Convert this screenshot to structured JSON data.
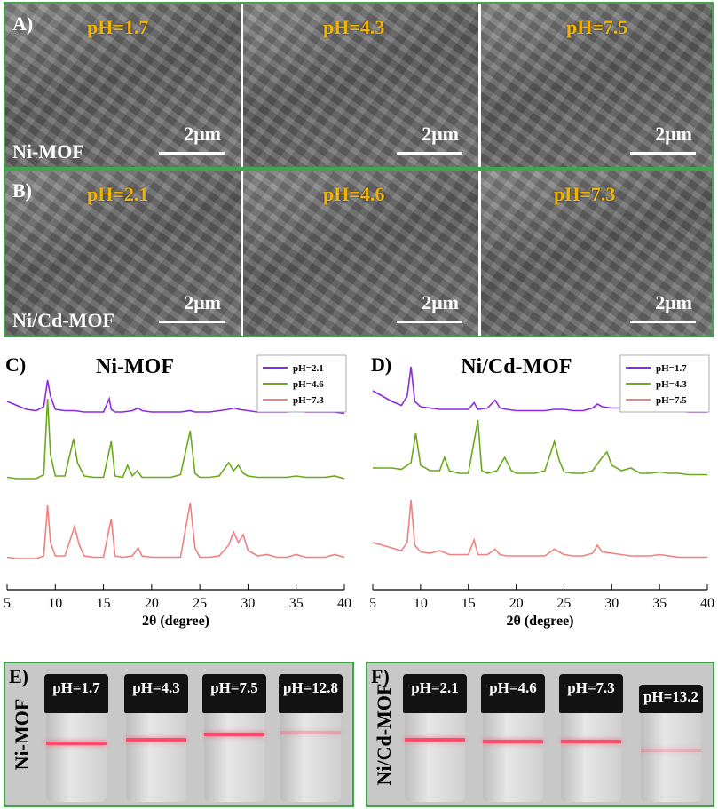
{
  "sem": {
    "rows": [
      {
        "letter": "A)",
        "material": "Ni-MOF",
        "tiles": [
          {
            "ph": "pH=1.7",
            "scale": "2μm"
          },
          {
            "ph": "pH=4.3",
            "scale": "2μm"
          },
          {
            "ph": "pH=7.5",
            "scale": "2μm"
          }
        ]
      },
      {
        "letter": "B)",
        "material": "Ni/Cd-MOF",
        "tiles": [
          {
            "ph": "pH=2.1",
            "scale": "2μm"
          },
          {
            "ph": "pH=4.6",
            "scale": "2μm"
          },
          {
            "ph": "pH=7.3",
            "scale": "2μm"
          }
        ]
      }
    ]
  },
  "chart_data": [
    {
      "type": "line",
      "letter": "C)",
      "title": "Ni-MOF",
      "xlabel": "2θ (degree)",
      "ylabel": "",
      "xlim": [
        5,
        40
      ],
      "xticks": [
        5,
        10,
        15,
        20,
        25,
        30,
        35,
        40
      ],
      "legend_position": "top-right",
      "series": [
        {
          "name": "pH=2.1",
          "color": "#8a2be2",
          "offset": 0,
          "x": [
            5,
            6,
            7,
            8,
            8.8,
            9.2,
            9.5,
            10,
            11,
            12,
            13,
            14,
            15,
            15.6,
            15.8,
            16.2,
            17,
            18,
            18.6,
            19,
            20,
            21,
            22,
            23,
            24,
            24.5,
            25,
            26,
            27,
            28,
            28.6,
            29,
            30,
            31,
            32,
            33,
            34,
            35,
            36,
            37,
            38,
            39,
            40
          ],
          "y": [
            10,
            7,
            4,
            3,
            6,
            26,
            14,
            4,
            3,
            3,
            2,
            2,
            2,
            12,
            4,
            2,
            2,
            3,
            5,
            3,
            2,
            2,
            2,
            2,
            3,
            2,
            2,
            2,
            3,
            4,
            5,
            4,
            3,
            2,
            2,
            2,
            2,
            3,
            2,
            2,
            2,
            2,
            1
          ]
        },
        {
          "name": "pH=4.6",
          "color": "#6aaa1a",
          "offset": 0,
          "x": [
            5,
            6,
            7,
            8,
            8.8,
            9.2,
            9.5,
            10,
            11,
            11.9,
            12.3,
            13,
            14,
            15,
            15.8,
            16.2,
            17,
            17.5,
            18,
            18.5,
            19,
            20,
            21,
            22,
            23,
            24,
            24.5,
            25,
            26,
            27,
            28,
            28.5,
            29,
            29.5,
            30,
            31,
            32,
            33,
            34,
            35,
            36,
            37,
            38,
            39,
            40
          ],
          "y": [
            3,
            2,
            2,
            2,
            5,
            62,
            20,
            4,
            4,
            32,
            14,
            4,
            3,
            3,
            30,
            4,
            3,
            12,
            4,
            8,
            3,
            3,
            3,
            3,
            5,
            38,
            6,
            3,
            3,
            4,
            14,
            8,
            12,
            6,
            4,
            3,
            3,
            3,
            3,
            4,
            3,
            3,
            3,
            4,
            2
          ]
        },
        {
          "name": "pH=7.3",
          "color": "#f08080",
          "offset": 0,
          "x": [
            5,
            6,
            7,
            8,
            8.8,
            9.2,
            9.5,
            10,
            11,
            12,
            12.5,
            13,
            14,
            15,
            15.8,
            16.2,
            17,
            18,
            18.6,
            19,
            20,
            21,
            22,
            23,
            24,
            24.5,
            25,
            26,
            27,
            28,
            28.5,
            29,
            29.5,
            30,
            31,
            32,
            33,
            34,
            35,
            36,
            37,
            38,
            39,
            40
          ],
          "y": [
            3,
            2,
            2,
            2,
            4,
            42,
            14,
            4,
            4,
            26,
            12,
            4,
            3,
            3,
            32,
            4,
            3,
            4,
            10,
            4,
            3,
            3,
            3,
            3,
            44,
            10,
            3,
            3,
            4,
            12,
            22,
            14,
            20,
            8,
            4,
            5,
            3,
            3,
            5,
            3,
            3,
            3,
            5,
            3
          ]
        }
      ]
    },
    {
      "type": "line",
      "letter": "D)",
      "title": "Ni/Cd-MOF",
      "xlabel": "2θ (degree)",
      "ylabel": "",
      "xlim": [
        5,
        40
      ],
      "xticks": [
        5,
        10,
        15,
        20,
        25,
        30,
        35,
        40
      ],
      "legend_position": "top-right",
      "series": [
        {
          "name": "pH=1.7",
          "color": "#8a2be2",
          "offset": 0,
          "x": [
            5,
            6,
            7,
            8,
            8.6,
            9.0,
            9.4,
            10,
            11,
            12,
            13,
            14,
            15,
            15.6,
            16,
            17,
            17.8,
            18.3,
            19,
            20,
            21,
            22,
            23,
            24,
            25,
            26,
            27,
            28,
            28.5,
            29,
            30,
            31,
            32,
            33,
            34,
            35,
            36,
            37,
            38,
            39,
            40
          ],
          "y": [
            18,
            14,
            10,
            7,
            14,
            36,
            10,
            6,
            5,
            4,
            4,
            4,
            4,
            9,
            4,
            5,
            11,
            5,
            4,
            3,
            3,
            3,
            3,
            4,
            4,
            3,
            3,
            5,
            8,
            6,
            5,
            5,
            3,
            3,
            3,
            4,
            3,
            3,
            2,
            2,
            2
          ]
        },
        {
          "name": "pH=4.3",
          "color": "#6aaa1a",
          "offset": 0,
          "x": [
            5,
            6,
            7,
            8,
            9,
            9.5,
            10,
            11,
            12,
            12.5,
            13,
            14,
            15,
            16,
            16.4,
            17,
            18,
            18.8,
            19.5,
            20,
            21,
            22,
            23,
            24,
            24.5,
            25,
            26,
            27,
            28,
            29,
            29.5,
            30,
            31,
            32,
            33,
            34,
            35,
            36,
            37,
            38,
            39,
            40
          ],
          "y": [
            10,
            10,
            10,
            9,
            14,
            36,
            12,
            8,
            8,
            18,
            8,
            6,
            6,
            46,
            8,
            6,
            8,
            18,
            8,
            6,
            6,
            6,
            8,
            30,
            16,
            7,
            6,
            6,
            8,
            18,
            22,
            12,
            8,
            10,
            6,
            6,
            7,
            6,
            6,
            5,
            5,
            5
          ]
        },
        {
          "name": "pH=7.5",
          "color": "#f08080",
          "offset": 0,
          "x": [
            5,
            6,
            7,
            8,
            8.6,
            9.0,
            9.4,
            10,
            11,
            12,
            13,
            14,
            15,
            15.6,
            16,
            17,
            17.8,
            18.3,
            19,
            20,
            21,
            22,
            23,
            24,
            25,
            26,
            27,
            28,
            28.5,
            29,
            30,
            31,
            32,
            33,
            34,
            35,
            36,
            37,
            38,
            39,
            40
          ],
          "y": [
            14,
            12,
            10,
            8,
            14,
            46,
            12,
            7,
            6,
            8,
            5,
            5,
            5,
            16,
            5,
            5,
            9,
            5,
            4,
            4,
            4,
            4,
            4,
            9,
            5,
            4,
            4,
            6,
            12,
            7,
            6,
            5,
            4,
            4,
            4,
            5,
            4,
            3,
            3,
            3,
            3
          ]
        }
      ]
    }
  ],
  "photos": [
    {
      "letter": "E)",
      "side_label": "Ni-MOF",
      "vials": [
        {
          "ph": "pH=1.7"
        },
        {
          "ph": "pH=4.3"
        },
        {
          "ph": "pH=7.5"
        },
        {
          "ph": "pH=12.8"
        }
      ]
    },
    {
      "letter": "F)",
      "side_label": "Ni/Cd-MOF",
      "vials": [
        {
          "ph": "pH=2.1"
        },
        {
          "ph": "pH=4.6"
        },
        {
          "ph": "pH=7.3"
        },
        {
          "ph": "pH=13.2"
        }
      ]
    }
  ]
}
